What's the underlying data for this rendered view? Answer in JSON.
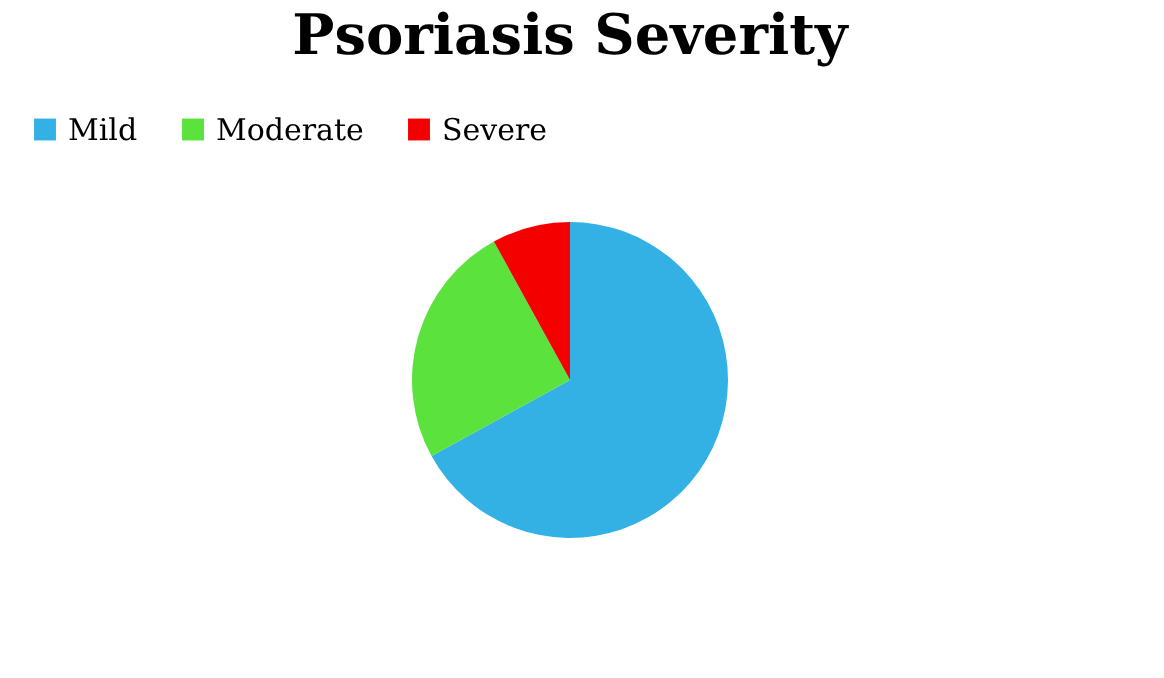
{
  "chart_data": {
    "type": "pie",
    "title": "Psoriasis Severity",
    "categories": [
      "Mild",
      "Moderate",
      "Severe"
    ],
    "values": [
      67,
      25,
      8
    ],
    "colors": [
      "#33b1e4",
      "#5be23c",
      "#f40000"
    ],
    "legend": "top"
  }
}
